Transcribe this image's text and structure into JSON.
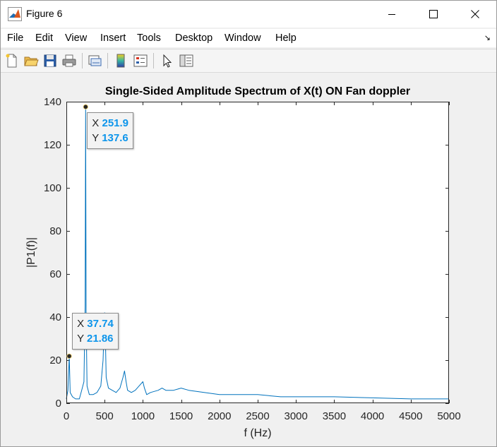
{
  "window": {
    "title": "Figure 6"
  },
  "menu": [
    "File",
    "Edit",
    "View",
    "Insert",
    "Tools",
    "Desktop",
    "Window",
    "Help"
  ],
  "menu_overflow_glyph": "↘",
  "toolbar": {
    "icons": [
      "new-figure-icon",
      "open-file-icon",
      "save-icon",
      "print-icon",
      "link-plot-icon",
      "insert-colorbar-icon",
      "insert-legend-icon",
      "edit-plot-arrow-icon",
      "property-inspector-icon"
    ]
  },
  "colors": {
    "line": "#0072bd",
    "datatip_value": "#0d95eb",
    "axes_bg": "#ffffff",
    "figure_bg": "#f0f0f0"
  },
  "chart_data": {
    "type": "line",
    "title": "Single-Sided Amplitude Spectrum of X(t) ON Fan doppler",
    "xlabel": "f (Hz)",
    "ylabel": "|P1(f)|",
    "xlim": [
      0,
      5000
    ],
    "ylim": [
      0,
      140
    ],
    "xticks": [
      0,
      500,
      1000,
      1500,
      2000,
      2500,
      3000,
      3500,
      4000,
      4500,
      5000
    ],
    "yticks": [
      0,
      20,
      40,
      60,
      80,
      100,
      120,
      140
    ],
    "grid": false,
    "series": [
      {
        "x": [
          0,
          20,
          37.74,
          50,
          80,
          120,
          170,
          200,
          230,
          245,
          251.9,
          258,
          270,
          300,
          350,
          400,
          450,
          480,
          500,
          510,
          520,
          550,
          600,
          650,
          700,
          740,
          760,
          780,
          800,
          850,
          900,
          950,
          1000,
          1020,
          1050,
          1100,
          1200,
          1250,
          1300,
          1400,
          1500,
          1600,
          1800,
          2000,
          2200,
          2500,
          2800,
          3000,
          3500,
          4000,
          4500,
          5000
        ],
        "y": [
          2,
          6,
          21.86,
          5,
          3,
          2,
          2,
          6,
          10,
          45,
          137.6,
          40,
          8,
          4,
          4,
          5,
          8,
          20,
          42,
          30,
          12,
          7,
          6,
          5,
          7,
          12,
          15,
          10,
          6,
          5,
          6,
          8,
          10,
          7,
          4,
          5,
          6,
          7,
          6,
          6,
          7,
          6,
          5,
          4,
          4,
          4,
          3,
          3,
          3,
          2.5,
          2,
          2
        ]
      }
    ],
    "datatips": [
      {
        "x_label": "X",
        "y_label": "Y",
        "x": "251.9",
        "y": "137.6"
      },
      {
        "x_label": "X",
        "y_label": "Y",
        "x": "37.74",
        "y": "21.86"
      }
    ]
  }
}
